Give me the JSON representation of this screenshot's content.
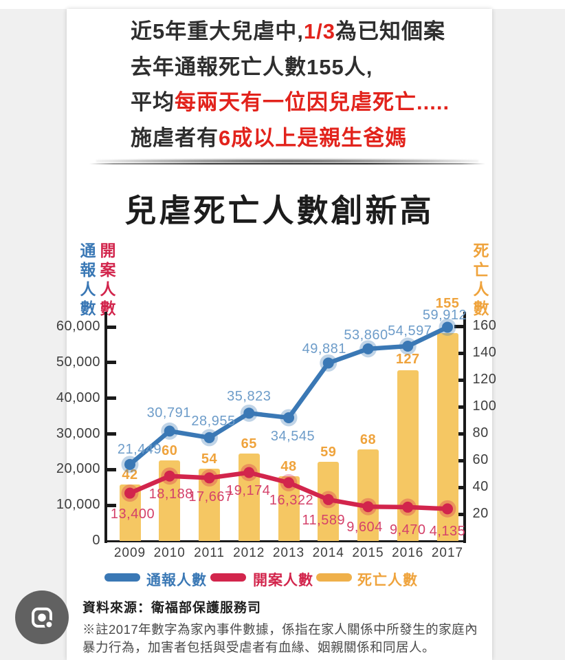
{
  "header": {
    "lines": [
      {
        "segments": [
          {
            "text": "近5年重大兒虐中,",
            "red": false
          },
          {
            "text": "1/3",
            "red": true
          },
          {
            "text": "為已知個案",
            "red": false
          }
        ]
      },
      {
        "segments": [
          {
            "text": "去年通報死亡人數155人,",
            "red": false
          }
        ]
      },
      {
        "segments": [
          {
            "text": "平均",
            "red": false
          },
          {
            "text": "每兩天有一位因兒虐死亡.....",
            "red": true
          }
        ]
      },
      {
        "segments": [
          {
            "text": "施虐者有",
            "red": false
          },
          {
            "text": "6成以上是親生爸媽",
            "red": true
          }
        ]
      }
    ]
  },
  "chart_data": {
    "type": "bar+line",
    "title": "兒虐死亡人數創新高",
    "categories": [
      "2009",
      "2010",
      "2011",
      "2012",
      "2013",
      "2014",
      "2015",
      "2016",
      "2017"
    ],
    "series": [
      {
        "name": "通報人數",
        "type": "line",
        "axis": "left",
        "color": "#3A78B5",
        "label_color": "#6D9CC9",
        "values": [
          21449,
          30791,
          28955,
          35823,
          34545,
          49881,
          53860,
          54597,
          59912
        ]
      },
      {
        "name": "開案人數",
        "type": "line",
        "axis": "left",
        "color": "#D2254C",
        "label_color": "#D4416A",
        "values": [
          13400,
          18188,
          17667,
          19174,
          16322,
          11589,
          9604,
          9470,
          4135
        ]
      },
      {
        "name": "死亡人數",
        "type": "bar",
        "axis": "right",
        "color": "#F5C763",
        "legend_color": "#EFB04A",
        "label_color": "#EFA33C",
        "values": [
          42,
          60,
          54,
          65,
          48,
          59,
          68,
          127,
          155
        ]
      }
    ],
    "left_axis": {
      "labels": [
        "通報人數",
        "開案人數"
      ],
      "ticks": [
        60000,
        50000,
        40000,
        30000,
        20000,
        10000,
        0
      ],
      "range": [
        0,
        63000
      ]
    },
    "right_axis": {
      "label": "死亡人數",
      "ticks": [
        160,
        140,
        120,
        100,
        80,
        60,
        40,
        20
      ],
      "range": [
        0,
        168
      ]
    },
    "legend_position": "bottom",
    "grid": false
  },
  "footer": {
    "source": "資料來源：衛福部保護服務司",
    "note_lines": [
      "※註2017年數字為家內事件數據，係指在家人關係中所發生的家庭內",
      "暴力行為，加害者包括與受虐者有血緣、姻親關係和同居人。"
    ]
  },
  "lens_button": {
    "label": "Google Lens search"
  },
  "colors": {
    "page_bg": "#FFFFFF",
    "panel_bg": "#F0F0F0",
    "header_dark": "#2E2E2E",
    "header_red": "#E2231C",
    "axis_line": "#1A1A1A",
    "axis_text": "#3E3E3E",
    "lens_circle": "#616161"
  }
}
